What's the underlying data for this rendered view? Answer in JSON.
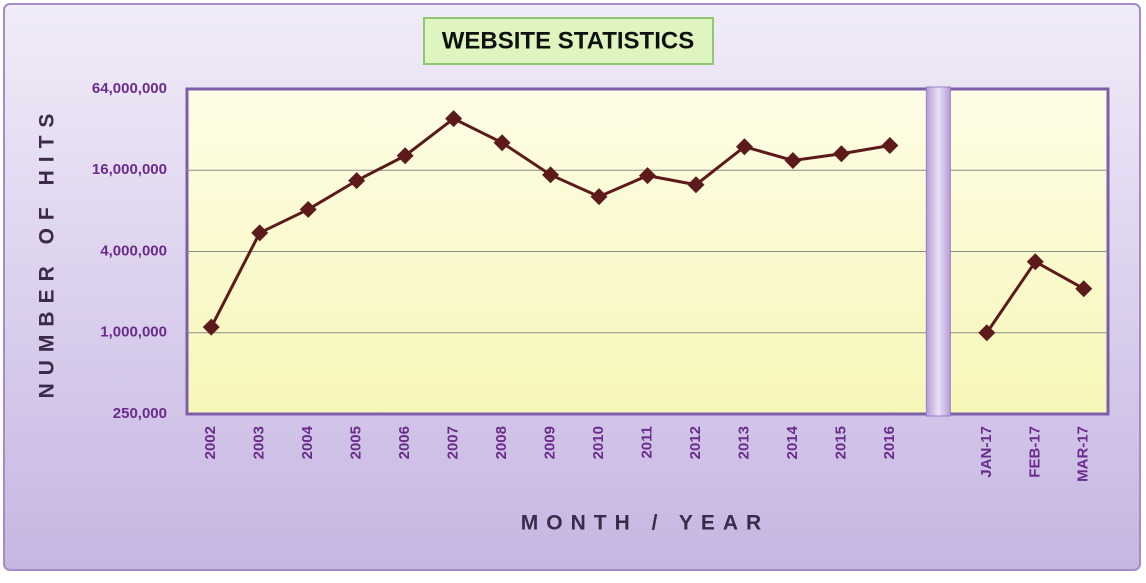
{
  "chart_data": {
    "type": "line",
    "title": "WEBSITE STATISTICS",
    "x_label": "MONTH / YEAR",
    "y_label": "NUMBER OF HITS",
    "categories": [
      "2002",
      "2003",
      "2004",
      "2005",
      "2006",
      "2007",
      "2008",
      "2009",
      "2010",
      "2011",
      "2012",
      "2013",
      "2014",
      "2015",
      "2016",
      null,
      "JAN-17",
      "FEB-17",
      "MAR-17"
    ],
    "series": [
      {
        "name": "Hits",
        "color": "#5c1a1a",
        "values": [
          1100000,
          5500000,
          8200000,
          13400000,
          20500000,
          38600000,
          25600000,
          14800000,
          10200000,
          14600000,
          12500000,
          23900000,
          18900000,
          21200000,
          24400000,
          null,
          1000000,
          3360000,
          2120000
        ]
      }
    ],
    "yscale": "log",
    "ylim": [
      250000,
      64000000
    ],
    "yticks": [
      {
        "value": 250000,
        "label": "250,000"
      },
      {
        "value": 1000000,
        "label": "1,000,000"
      },
      {
        "value": 4000000,
        "label": "4,000,000"
      },
      {
        "value": 16000000,
        "label": "16,000,000"
      },
      {
        "value": 64000000,
        "label": "64,000,000"
      }
    ],
    "grid": true
  }
}
